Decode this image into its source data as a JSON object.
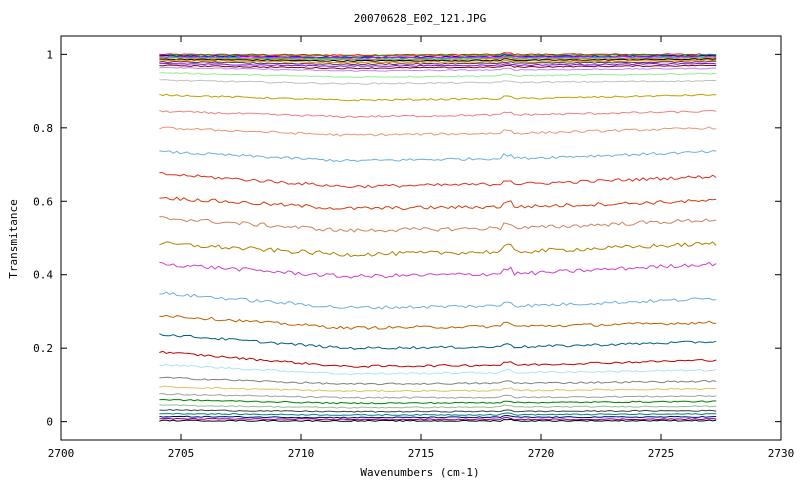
{
  "chart_data": {
    "type": "line",
    "title": "20070628_E02_121.JPG",
    "xlabel": "Wavenumbers (cm-1)",
    "ylabel": "Transmitance",
    "xlim": [
      2700,
      2730
    ],
    "ylim": [
      -0.05,
      1.05
    ],
    "x_ticks": [
      2700,
      2705,
      2710,
      2715,
      2720,
      2725,
      2730
    ],
    "x_tick_labels": [
      "2700",
      "2705",
      "2710",
      "2715",
      "2720",
      "2725",
      "2730"
    ],
    "y_ticks": [
      0,
      0.2,
      0.4,
      0.6,
      0.8,
      1
    ],
    "y_tick_labels": [
      "0",
      "0.2",
      "0.4",
      "0.6",
      "0.8",
      "1"
    ],
    "grid": false,
    "legend": "none",
    "x_range": [
      2704.1,
      2727.3
    ],
    "feature_x": 2718.6,
    "series": [
      {
        "values": [
          1.0,
          0.998,
          1.0,
          1.0
        ],
        "color": "#ff0000"
      },
      {
        "values": [
          0.998,
          0.995,
          0.997,
          0.998
        ],
        "color": "#00c000"
      },
      {
        "values": [
          0.996,
          0.992,
          0.994,
          0.996
        ],
        "color": "#0000ff"
      },
      {
        "values": [
          0.994,
          0.99,
          0.992,
          0.994
        ],
        "color": "#ff00ff"
      },
      {
        "values": [
          0.992,
          0.987,
          0.99,
          0.992
        ],
        "color": "#00c0c0"
      },
      {
        "values": [
          0.99,
          0.985,
          0.987,
          0.99
        ],
        "color": "#c0a000"
      },
      {
        "values": [
          0.987,
          0.982,
          0.984,
          0.987
        ],
        "color": "#000000"
      },
      {
        "values": [
          0.984,
          0.978,
          0.98,
          0.984
        ],
        "color": "#ff8000"
      },
      {
        "values": [
          0.98,
          0.973,
          0.976,
          0.98
        ],
        "color": "#404040"
      },
      {
        "values": [
          0.975,
          0.968,
          0.971,
          0.975
        ],
        "color": "#8000ff"
      },
      {
        "values": [
          0.97,
          0.962,
          0.966,
          0.97
        ],
        "color": "#800000"
      },
      {
        "values": [
          0.965,
          0.955,
          0.958,
          0.962
        ],
        "color": "#c080ff"
      },
      {
        "values": [
          0.95,
          0.938,
          0.942,
          0.948
        ],
        "color": "#90ee90"
      },
      {
        "values": [
          0.93,
          0.92,
          0.924,
          0.928
        ],
        "color": "#c0c0c0"
      },
      {
        "values": [
          0.89,
          0.875,
          0.88,
          0.89
        ],
        "color": "#c0a000"
      },
      {
        "values": [
          0.845,
          0.83,
          0.836,
          0.845
        ],
        "color": "#f08080"
      },
      {
        "values": [
          0.8,
          0.78,
          0.786,
          0.8
        ],
        "color": "#e9967a"
      },
      {
        "values": [
          0.735,
          0.71,
          0.718,
          0.735
        ],
        "color": "#6ab0e0"
      },
      {
        "values": [
          0.675,
          0.64,
          0.648,
          0.668
        ],
        "color": "#e03020"
      },
      {
        "values": [
          0.61,
          0.58,
          0.586,
          0.602
        ],
        "color": "#d04010"
      },
      {
        "values": [
          0.555,
          0.52,
          0.528,
          0.55
        ],
        "color": "#d08060"
      },
      {
        "values": [
          0.485,
          0.455,
          0.464,
          0.485
        ],
        "color": "#b08000"
      },
      {
        "values": [
          0.43,
          0.395,
          0.404,
          0.43
        ],
        "color": "#d040d0"
      },
      {
        "values": [
          0.35,
          0.31,
          0.316,
          0.335
        ],
        "color": "#6ab0e0"
      },
      {
        "values": [
          0.29,
          0.255,
          0.26,
          0.27
        ],
        "color": "#c06000"
      },
      {
        "values": [
          0.238,
          0.2,
          0.204,
          0.218
        ],
        "color": "#006080"
      },
      {
        "values": [
          0.19,
          0.15,
          0.155,
          0.168
        ],
        "color": "#c00000"
      },
      {
        "values": [
          0.155,
          0.13,
          0.134,
          0.14
        ],
        "color": "#b0e0ff"
      },
      {
        "values": [
          0.12,
          0.102,
          0.105,
          0.11
        ],
        "color": "#808080"
      },
      {
        "values": [
          0.095,
          0.083,
          0.085,
          0.09
        ],
        "color": "#e0c060"
      },
      {
        "values": [
          0.075,
          0.065,
          0.066,
          0.07
        ],
        "color": "#a0a0a0"
      },
      {
        "values": [
          0.06,
          0.05,
          0.052,
          0.055
        ],
        "color": "#008000"
      },
      {
        "values": [
          0.045,
          0.038,
          0.04,
          0.042
        ],
        "color": "#90c090"
      },
      {
        "values": [
          0.032,
          0.027,
          0.028,
          0.03
        ],
        "color": "#404040"
      },
      {
        "values": [
          0.022,
          0.018,
          0.019,
          0.021
        ],
        "color": "#008080"
      },
      {
        "values": [
          0.014,
          0.011,
          0.012,
          0.013
        ],
        "color": "#000080"
      },
      {
        "values": [
          0.008,
          0.006,
          0.006,
          0.007
        ],
        "color": "#800080"
      },
      {
        "values": [
          0.003,
          0.002,
          0.002,
          0.003
        ],
        "color": "#000000"
      }
    ]
  }
}
